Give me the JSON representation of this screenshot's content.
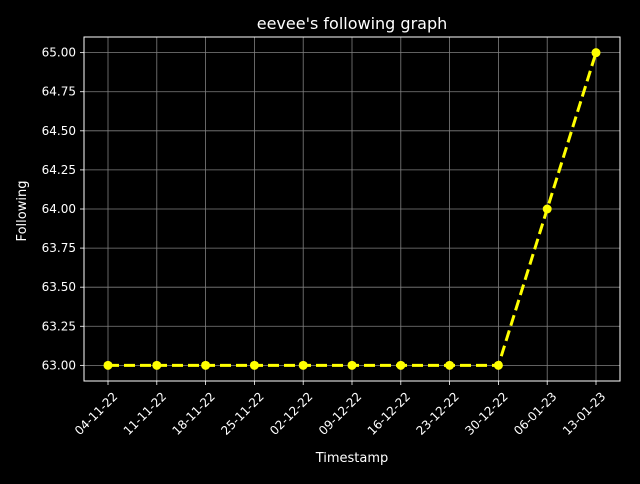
{
  "chart_data": {
    "type": "line",
    "title": "eevee's following graph",
    "xlabel": "Timestamp",
    "ylabel": "Following",
    "categories": [
      "04-11-22",
      "11-11-22",
      "18-11-22",
      "25-11-22",
      "02-12-22",
      "09-12-22",
      "16-12-22",
      "23-12-22",
      "30-12-22",
      "06-01-23",
      "13-01-23"
    ],
    "series": [
      {
        "values": [
          63,
          63,
          63,
          63,
          63,
          63,
          63,
          63,
          63,
          64,
          65
        ],
        "color": "#ffff00",
        "line_style": "dashed",
        "marker": "circle"
      }
    ],
    "yticks": [
      "63.00",
      "63.25",
      "63.50",
      "63.75",
      "64.00",
      "64.25",
      "64.50",
      "64.75",
      "65.00"
    ],
    "ylim": [
      62.9,
      65.1
    ],
    "grid": true,
    "background": "#000000",
    "grid_color": "#808080",
    "axis_color": "#ffffff"
  }
}
